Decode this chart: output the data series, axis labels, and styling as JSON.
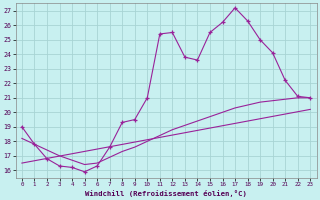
{
  "bg_color": "#c8f0f0",
  "grid_color": "#a8d4d4",
  "line_color": "#992299",
  "xlim": [
    -0.5,
    23.5
  ],
  "ylim": [
    15.5,
    27.5
  ],
  "xticks": [
    0,
    1,
    2,
    3,
    4,
    5,
    6,
    7,
    8,
    9,
    10,
    11,
    12,
    13,
    14,
    15,
    16,
    17,
    18,
    19,
    20,
    21,
    22,
    23
  ],
  "yticks": [
    16,
    17,
    18,
    19,
    20,
    21,
    22,
    23,
    24,
    25,
    26,
    27
  ],
  "xlabel": "Windchill (Refroidissement éolien,°C)",
  "main_x": [
    0,
    1,
    2,
    3,
    4,
    5,
    6,
    7,
    8,
    9,
    10,
    11,
    12,
    13,
    14,
    15,
    16,
    17,
    18,
    19,
    20,
    21,
    22,
    23
  ],
  "main_y": [
    19.0,
    17.8,
    16.8,
    16.3,
    16.2,
    15.9,
    16.3,
    17.6,
    19.3,
    19.5,
    21.0,
    25.4,
    25.5,
    23.8,
    23.6,
    25.5,
    26.2,
    27.2,
    26.3,
    25.0,
    24.1,
    22.2,
    21.1,
    21.0
  ],
  "line1_x": [
    0,
    1,
    2,
    3,
    4,
    5,
    6,
    7,
    8,
    9,
    10,
    11,
    12,
    13,
    14,
    15,
    16,
    17,
    18,
    19,
    20,
    21,
    22,
    23
  ],
  "line1_y": [
    18.2,
    17.8,
    17.4,
    17.0,
    16.7,
    16.4,
    16.5,
    16.9,
    17.3,
    17.6,
    18.0,
    18.4,
    18.8,
    19.1,
    19.4,
    19.7,
    20.0,
    20.3,
    20.5,
    20.7,
    20.8,
    20.9,
    21.0,
    21.0
  ],
  "line2_x": [
    0,
    23
  ],
  "line2_y": [
    16.5,
    20.2
  ]
}
